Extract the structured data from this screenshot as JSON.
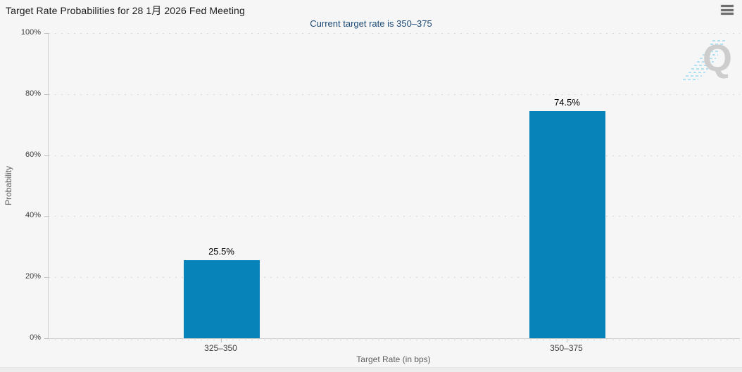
{
  "page": {
    "background": "#f6f6f6"
  },
  "header": {
    "title": "Target Rate Probabilities for 28 1月 2026 Fed Meeting",
    "subtitle": "Current target rate is 350–375"
  },
  "watermark": {
    "letter": "Q"
  },
  "chart_data": {
    "type": "bar",
    "title": "Target Rate Probabilities for 28 1月 2026 Fed Meeting",
    "subtitle": "Current target rate is 350–375",
    "categories": [
      "325–350",
      "350–375"
    ],
    "values": [
      25.5,
      74.5
    ],
    "value_labels": [
      "25.5%",
      "74.5%"
    ],
    "series": [
      {
        "name": "Probability",
        "values": [
          25.5,
          74.5
        ]
      }
    ],
    "xlabel": "Target Rate (in bps)",
    "ylabel": "Probability",
    "ylim": [
      0,
      100
    ],
    "yticks": [
      "0%",
      "20%",
      "40%",
      "60%",
      "80%",
      "100%"
    ],
    "ytick_values": [
      0,
      20,
      40,
      60,
      80,
      100
    ],
    "grid": "dotted-horizontal",
    "legend": "none",
    "bar_color": "#0883ba",
    "bar_label_color": "#000000"
  },
  "colors": {
    "background": "#f6f6f6",
    "bar": "#0883ba",
    "title_text": "#1c1c1c",
    "subtitle_text": "#1b4a76",
    "axis_line": "#cfcfcf",
    "gridline": "#d6d6d6",
    "tick_label": "#3f3f3f",
    "axis_title": "#5f5f5f",
    "watermark_letter": "#c6c6c6",
    "watermark_stripes": "#a9ddf3",
    "menu_icon": "#6e6e6e"
  }
}
